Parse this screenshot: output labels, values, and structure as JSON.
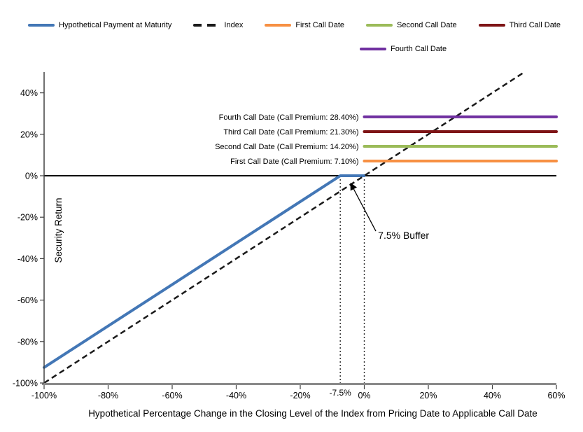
{
  "legend": {
    "rows": [
      [
        {
          "label": "Hypothetical Payment at Maturity",
          "color": "#4377B6",
          "style": "solid"
        },
        {
          "label": "Index",
          "color": "#1A1A1A",
          "style": "dashed"
        },
        {
          "label": "First Call Date",
          "color": "#F79043",
          "style": "solid"
        },
        {
          "label": "Second Call Date",
          "color": "#9BBB59",
          "style": "solid"
        },
        {
          "label": "Third Call Date",
          "color": "#7E1416",
          "style": "solid"
        }
      ],
      [
        {
          "label": "Fourth Call Date",
          "color": "#7030A0",
          "style": "solid"
        }
      ]
    ]
  },
  "chart_data": {
    "type": "line",
    "title": "",
    "xlabel": "Hypothetical Percentage Change in the Closing Level of the Index from Pricing Date to Applicable Call Date",
    "ylabel": "Security Return",
    "xlim": [
      -100,
      60
    ],
    "ylim": [
      -100,
      50
    ],
    "grid": false,
    "legend_position": "top",
    "x_ticks": [
      {
        "value": -100,
        "label": "-100%"
      },
      {
        "value": -80,
        "label": "-80%"
      },
      {
        "value": -60,
        "label": "-60%"
      },
      {
        "value": -40,
        "label": "-40%"
      },
      {
        "value": -20,
        "label": "-20%"
      },
      {
        "value": 0,
        "label": "0%"
      },
      {
        "value": 20,
        "label": "20%"
      },
      {
        "value": 40,
        "label": "40%"
      },
      {
        "value": 60,
        "label": "60%"
      }
    ],
    "x_extra_tick": {
      "value": -7.5,
      "label": "-7.5%"
    },
    "y_ticks": [
      {
        "value": 40,
        "label": "40%"
      },
      {
        "value": 20,
        "label": "20%"
      },
      {
        "value": 0,
        "label": "0%"
      },
      {
        "value": -20,
        "label": "-20%"
      },
      {
        "value": -40,
        "label": "-40%"
      },
      {
        "value": -60,
        "label": "-60%"
      },
      {
        "value": -80,
        "label": "-80%"
      },
      {
        "value": -100,
        "label": "-100%"
      }
    ],
    "series": [
      {
        "name": "Hypothetical Payment at Maturity",
        "color": "#4377B6",
        "style": "solid",
        "width": 4,
        "points": [
          [
            -100,
            -92.5
          ],
          [
            -7.5,
            0
          ],
          [
            0,
            0
          ]
        ]
      },
      {
        "name": "Index",
        "color": "#1A1A1A",
        "style": "dashed",
        "width": 2.5,
        "points": [
          [
            -100,
            -100
          ],
          [
            50,
            50
          ]
        ]
      },
      {
        "name": "First Call Date",
        "color": "#F79043",
        "style": "solid",
        "width": 4,
        "points": [
          [
            0,
            7.1
          ],
          [
            60,
            7.1
          ]
        ],
        "annotation": "First Call Date (Call Premium: 7.10%)"
      },
      {
        "name": "Second Call Date",
        "color": "#9BBB59",
        "style": "solid",
        "width": 4,
        "points": [
          [
            0,
            14.2
          ],
          [
            60,
            14.2
          ]
        ],
        "annotation": "Second Call Date (Call Premium: 14.20%)"
      },
      {
        "name": "Third Call Date",
        "color": "#7E1416",
        "style": "solid",
        "width": 4,
        "points": [
          [
            0,
            21.3
          ],
          [
            60,
            21.3
          ]
        ],
        "annotation": "Third Call Date (Call Premium: 21.30%)"
      },
      {
        "name": "Fourth Call Date",
        "color": "#7030A0",
        "style": "solid",
        "width": 4,
        "points": [
          [
            0,
            28.4
          ],
          [
            60,
            28.4
          ]
        ],
        "annotation": "Fourth Call Date (Call Premium: 28.40%)"
      }
    ],
    "reference_lines": {
      "zero_line_y": 0,
      "dotted_vertical_x": [
        -7.5,
        0
      ]
    },
    "buffer_annotation": {
      "label": "7.5% Buffer",
      "label_pos": [
        4.3,
        -30.4
      ],
      "arrow_from": [
        3.6,
        -26.7
      ],
      "arrow_to": [
        -4.2,
        -3.8
      ]
    },
    "call_premiums": {
      "first": "7.10%",
      "second": "14.20%",
      "third": "21.30%",
      "fourth": "28.40%",
      "buffer": "7.5%"
    }
  }
}
